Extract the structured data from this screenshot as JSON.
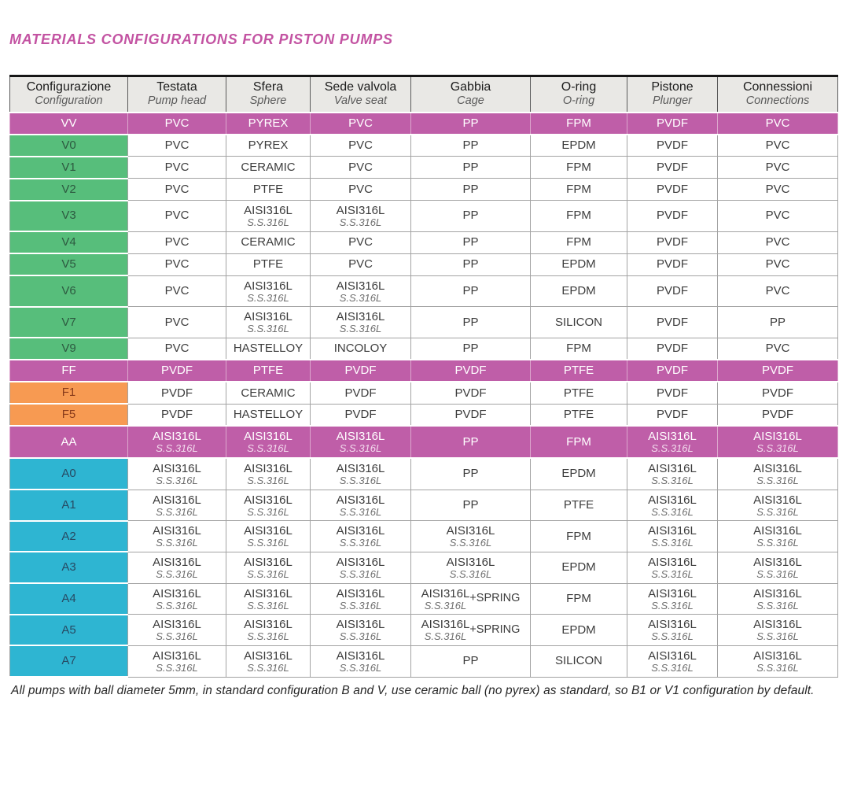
{
  "title": "MATERIALS CONFIGURATIONS FOR PISTON PUMPS",
  "footnote": "All pumps with ball diameter 5mm, in standard configuration B and V, use ceramic ball (no pyrex) as standard, so B1 or V1 configuration by default.",
  "colors": {
    "magenta": "#bf5ea8",
    "green": "#57be7b",
    "orange": "#f79a52",
    "cyan": "#2eb5d2",
    "title": "#c353a2"
  },
  "table": {
    "columns": [
      {
        "it": "Configurazione",
        "en": "Configuration"
      },
      {
        "it": "Testata",
        "en": "Pump head"
      },
      {
        "it": "Sfera",
        "en": "Sphere"
      },
      {
        "it": "Sede valvola",
        "en": "Valve seat"
      },
      {
        "it": "Gabbia",
        "en": "Cage"
      },
      {
        "it": "O-ring",
        "en": "O-ring"
      },
      {
        "it": "Pistone",
        "en": "Plunger"
      },
      {
        "it": "Connessioni",
        "en": "Connections"
      }
    ],
    "rows": [
      {
        "config": "VV",
        "style": "magenta",
        "cells": [
          "PVC",
          "PYREX",
          "PVC",
          "PP",
          "FPM",
          "PVDF",
          "PVC"
        ]
      },
      {
        "config": "V0",
        "style": "green",
        "cells": [
          "PVC",
          "PYREX",
          "PVC",
          "PP",
          "EPDM",
          "PVDF",
          "PVC"
        ]
      },
      {
        "config": "V1",
        "style": "green",
        "cells": [
          "PVC",
          "CERAMIC",
          "PVC",
          "PP",
          "FPM",
          "PVDF",
          "PVC"
        ]
      },
      {
        "config": "V2",
        "style": "green",
        "cells": [
          "PVC",
          "PTFE",
          "PVC",
          "PP",
          "FPM",
          "PVDF",
          "PVC"
        ]
      },
      {
        "config": "V3",
        "style": "green",
        "cells": [
          "PVC",
          {
            "main": "AISI316L",
            "sub": "S.S.316L"
          },
          {
            "main": "AISI316L",
            "sub": "S.S.316L"
          },
          "PP",
          "FPM",
          "PVDF",
          "PVC"
        ]
      },
      {
        "config": "V4",
        "style": "green",
        "cells": [
          "PVC",
          "CERAMIC",
          "PVC",
          "PP",
          "FPM",
          "PVDF",
          "PVC"
        ]
      },
      {
        "config": "V5",
        "style": "green",
        "cells": [
          "PVC",
          "PTFE",
          "PVC",
          "PP",
          "EPDM",
          "PVDF",
          "PVC"
        ]
      },
      {
        "config": "V6",
        "style": "green",
        "cells": [
          "PVC",
          {
            "main": "AISI316L",
            "sub": "S.S.316L"
          },
          {
            "main": "AISI316L",
            "sub": "S.S.316L"
          },
          "PP",
          "EPDM",
          "PVDF",
          "PVC"
        ]
      },
      {
        "config": "V7",
        "style": "green",
        "cells": [
          "PVC",
          {
            "main": "AISI316L",
            "sub": "S.S.316L"
          },
          {
            "main": "AISI316L",
            "sub": "S.S.316L"
          },
          "PP",
          "SILICON",
          "PVDF",
          "PP"
        ]
      },
      {
        "config": "V9",
        "style": "green",
        "cells": [
          "PVC",
          "HASTELLOY",
          "INCOLOY",
          "PP",
          "FPM",
          "PVDF",
          "PVC"
        ]
      },
      {
        "config": "FF",
        "style": "magenta",
        "cells": [
          "PVDF",
          "PTFE",
          "PVDF",
          "PVDF",
          "PTFE",
          "PVDF",
          "PVDF"
        ]
      },
      {
        "config": "F1",
        "style": "orange",
        "cells": [
          "PVDF",
          "CERAMIC",
          "PVDF",
          "PVDF",
          "PTFE",
          "PVDF",
          "PVDF"
        ]
      },
      {
        "config": "F5",
        "style": "orange",
        "cells": [
          "PVDF",
          "HASTELLOY",
          "PVDF",
          "PVDF",
          "PTFE",
          "PVDF",
          "PVDF"
        ]
      },
      {
        "config": "AA",
        "style": "magenta",
        "cells": [
          {
            "main": "AISI316L",
            "sub": "S.S.316L"
          },
          {
            "main": "AISI316L",
            "sub": "S.S.316L"
          },
          {
            "main": "AISI316L",
            "sub": "S.S.316L"
          },
          "PP",
          "FPM",
          {
            "main": "AISI316L",
            "sub": "S.S.316L"
          },
          {
            "main": "AISI316L",
            "sub": "S.S.316L"
          }
        ]
      },
      {
        "config": "A0",
        "style": "cyan",
        "cells": [
          {
            "main": "AISI316L",
            "sub": "S.S.316L"
          },
          {
            "main": "AISI316L",
            "sub": "S.S.316L"
          },
          {
            "main": "AISI316L",
            "sub": "S.S.316L"
          },
          "PP",
          "EPDM",
          {
            "main": "AISI316L",
            "sub": "S.S.316L"
          },
          {
            "main": "AISI316L",
            "sub": "S.S.316L"
          }
        ]
      },
      {
        "config": "A1",
        "style": "cyan",
        "cells": [
          {
            "main": "AISI316L",
            "sub": "S.S.316L"
          },
          {
            "main": "AISI316L",
            "sub": "S.S.316L"
          },
          {
            "main": "AISI316L",
            "sub": "S.S.316L"
          },
          "PP",
          "PTFE",
          {
            "main": "AISI316L",
            "sub": "S.S.316L"
          },
          {
            "main": "AISI316L",
            "sub": "S.S.316L"
          }
        ]
      },
      {
        "config": "A2",
        "style": "cyan",
        "cells": [
          {
            "main": "AISI316L",
            "sub": "S.S.316L"
          },
          {
            "main": "AISI316L",
            "sub": "S.S.316L"
          },
          {
            "main": "AISI316L",
            "sub": "S.S.316L"
          },
          {
            "main": "AISI316L",
            "sub": "S.S.316L"
          },
          "FPM",
          {
            "main": "AISI316L",
            "sub": "S.S.316L"
          },
          {
            "main": "AISI316L",
            "sub": "S.S.316L"
          }
        ]
      },
      {
        "config": "A3",
        "style": "cyan",
        "cells": [
          {
            "main": "AISI316L",
            "sub": "S.S.316L"
          },
          {
            "main": "AISI316L",
            "sub": "S.S.316L"
          },
          {
            "main": "AISI316L",
            "sub": "S.S.316L"
          },
          {
            "main": "AISI316L",
            "sub": "S.S.316L"
          },
          "EPDM",
          {
            "main": "AISI316L",
            "sub": "S.S.316L"
          },
          {
            "main": "AISI316L",
            "sub": "S.S.316L"
          }
        ]
      },
      {
        "config": "A4",
        "style": "cyan",
        "cells": [
          {
            "main": "AISI316L",
            "sub": "S.S.316L"
          },
          {
            "main": "AISI316L",
            "sub": "S.S.316L"
          },
          {
            "main": "AISI316L",
            "sub": "S.S.316L"
          },
          {
            "main": "AISI316L",
            "sub": "S.S.316L",
            "suffix": "+SPRING"
          },
          "FPM",
          {
            "main": "AISI316L",
            "sub": "S.S.316L"
          },
          {
            "main": "AISI316L",
            "sub": "S.S.316L"
          }
        ]
      },
      {
        "config": "A5",
        "style": "cyan",
        "cells": [
          {
            "main": "AISI316L",
            "sub": "S.S.316L"
          },
          {
            "main": "AISI316L",
            "sub": "S.S.316L"
          },
          {
            "main": "AISI316L",
            "sub": "S.S.316L"
          },
          {
            "main": "AISI316L",
            "sub": "S.S.316L",
            "suffix": "+SPRING"
          },
          "EPDM",
          {
            "main": "AISI316L",
            "sub": "S.S.316L"
          },
          {
            "main": "AISI316L",
            "sub": "S.S.316L"
          }
        ]
      },
      {
        "config": "A7",
        "style": "cyan",
        "cells": [
          {
            "main": "AISI316L",
            "sub": "S.S.316L"
          },
          {
            "main": "AISI316L",
            "sub": "S.S.316L"
          },
          {
            "main": "AISI316L",
            "sub": "S.S.316L"
          },
          "PP",
          "SILICON",
          {
            "main": "AISI316L",
            "sub": "S.S.316L"
          },
          {
            "main": "AISI316L",
            "sub": "S.S.316L"
          }
        ]
      }
    ]
  }
}
